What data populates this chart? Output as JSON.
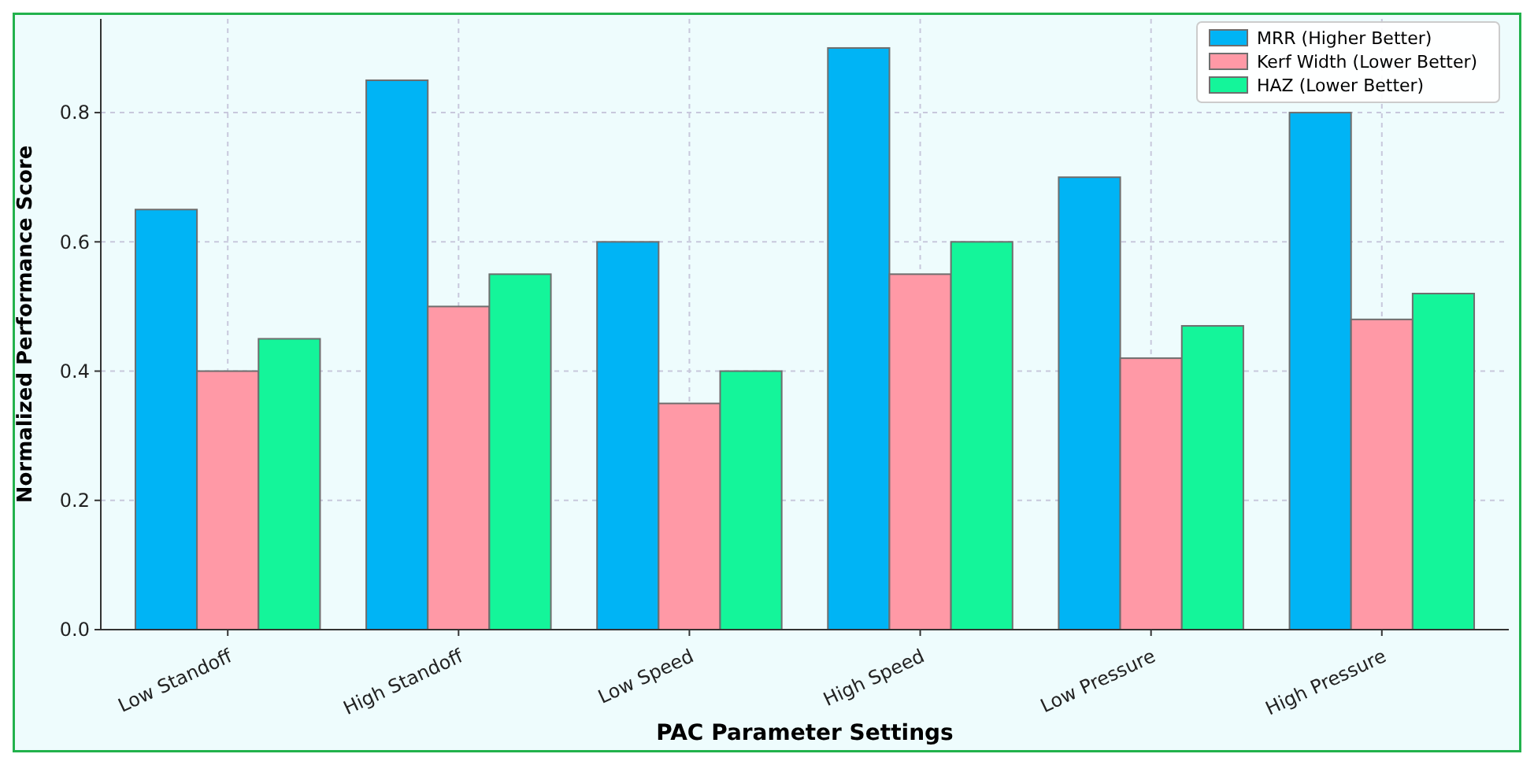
{
  "chart_data": {
    "type": "bar",
    "xlabel": "PAC Parameter Settings",
    "ylabel": "Normalized Performance Score",
    "categories": [
      "Low Standoff",
      "High Standoff",
      "Low Speed",
      "High Speed",
      "Low Pressure",
      "High Pressure"
    ],
    "series": [
      {
        "name": "MRR (Higher Better)",
        "color": "#00b4f5",
        "values": [
          0.65,
          0.85,
          0.6,
          0.9,
          0.7,
          0.8
        ]
      },
      {
        "name": "Kerf Width (Lower Better)",
        "color": "#ff99a6",
        "values": [
          0.4,
          0.5,
          0.35,
          0.55,
          0.42,
          0.48
        ]
      },
      {
        "name": "HAZ (Lower Better)",
        "color": "#14f59a",
        "values": [
          0.45,
          0.55,
          0.4,
          0.6,
          0.47,
          0.52
        ]
      }
    ],
    "ylim": [
      0,
      0.945
    ],
    "yticks": [
      {
        "value": 0,
        "label": "0.0"
      },
      {
        "value": 0.2,
        "label": "0.2"
      },
      {
        "value": 0.4,
        "label": "0.4"
      },
      {
        "value": 0.6,
        "label": "0.6"
      },
      {
        "value": 0.8,
        "label": "0.8"
      }
    ],
    "grid": true,
    "legend": "top right"
  }
}
